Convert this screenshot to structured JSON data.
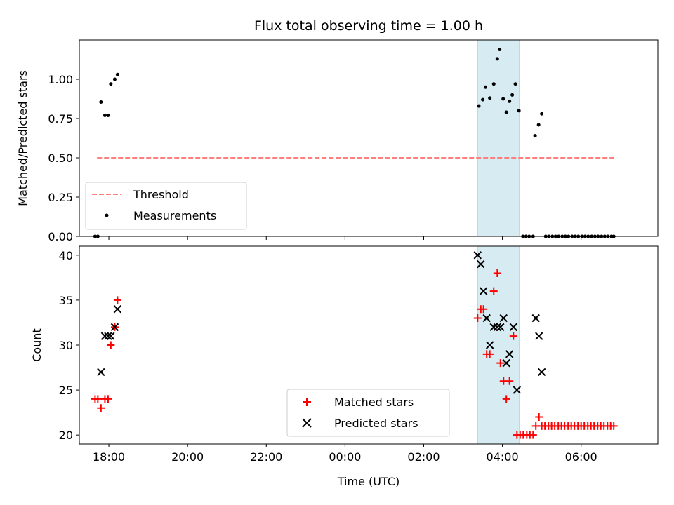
{
  "title": "Flux total observing time = 1.00 h",
  "colors": {
    "threshold": "#ff7f7f",
    "measurements": "#000000",
    "matched": "#ff0000",
    "predicted": "#000000",
    "highlight": "#add8e6"
  },
  "chart_data": [
    {
      "type": "scatter",
      "panel": "top",
      "ylabel": "Matched/Predicted stars",
      "xlabel": "",
      "xlim": [
        -6.75,
        7.95
      ],
      "ylim": [
        0,
        1.25
      ],
      "yticks": [
        0.0,
        0.25,
        0.5,
        0.75,
        1.0
      ],
      "ytick_labels": [
        "0.00",
        "0.25",
        "0.50",
        "0.75",
        "1.00"
      ],
      "highlight_span": [
        3.37,
        4.43
      ],
      "threshold": {
        "name": "Threshold",
        "value": 0.5,
        "x": [
          -6.3,
          6.83
        ]
      },
      "legend": {
        "placement": "lower-left",
        "entries": [
          "Threshold",
          "Measurements"
        ]
      },
      "series": [
        {
          "name": "Measurements",
          "points": [
            [
              -6.35,
              0.0
            ],
            [
              -6.28,
              0.0
            ],
            [
              -6.2,
              0.855
            ],
            [
              -6.1,
              0.77
            ],
            [
              -6.02,
              0.77
            ],
            [
              -5.95,
              0.97
            ],
            [
              -5.85,
              1.0
            ],
            [
              -5.78,
              1.03
            ],
            [
              3.4,
              0.83
            ],
            [
              3.5,
              0.87
            ],
            [
              3.57,
              0.95
            ],
            [
              3.68,
              0.88
            ],
            [
              3.78,
              0.97
            ],
            [
              3.87,
              1.13
            ],
            [
              3.93,
              1.19
            ],
            [
              4.02,
              0.875
            ],
            [
              4.1,
              0.79
            ],
            [
              4.18,
              0.86
            ],
            [
              4.25,
              0.9
            ],
            [
              4.33,
              0.97
            ],
            [
              4.42,
              0.8
            ],
            [
              4.52,
              0.0
            ],
            [
              4.6,
              0.0
            ],
            [
              4.68,
              0.0
            ],
            [
              4.78,
              0.0
            ],
            [
              4.83,
              0.64
            ],
            [
              4.92,
              0.71
            ],
            [
              5.0,
              0.78
            ],
            [
              5.1,
              0.0
            ],
            [
              5.18,
              0.0
            ],
            [
              5.27,
              0.0
            ],
            [
              5.35,
              0.0
            ],
            [
              5.43,
              0.0
            ],
            [
              5.52,
              0.0
            ],
            [
              5.6,
              0.0
            ],
            [
              5.68,
              0.0
            ],
            [
              5.77,
              0.0
            ],
            [
              5.85,
              0.0
            ],
            [
              5.93,
              0.0
            ],
            [
              6.02,
              0.0
            ],
            [
              6.1,
              0.0
            ],
            [
              6.18,
              0.0
            ],
            [
              6.27,
              0.0
            ],
            [
              6.35,
              0.0
            ],
            [
              6.43,
              0.0
            ],
            [
              6.52,
              0.0
            ],
            [
              6.6,
              0.0
            ],
            [
              6.68,
              0.0
            ],
            [
              6.77,
              0.0
            ],
            [
              6.83,
              0.0
            ]
          ]
        }
      ]
    },
    {
      "type": "scatter",
      "panel": "bottom",
      "ylabel": "Count",
      "xlabel": "Time (UTC)",
      "xlim": [
        -6.75,
        7.95
      ],
      "ylim": [
        19,
        41
      ],
      "yticks": [
        20,
        25,
        30,
        35,
        40
      ],
      "ytick_labels": [
        "20",
        "25",
        "30",
        "35",
        "40"
      ],
      "xticks": [
        -6,
        -4,
        -2,
        0,
        2,
        4,
        6
      ],
      "xtick_labels": [
        "18:00",
        "20:00",
        "22:00",
        "00:00",
        "02:00",
        "04:00",
        "06:00"
      ],
      "highlight_span": [
        3.37,
        4.43
      ],
      "legend": {
        "placement": "lower-center",
        "entries": [
          "Matched stars",
          "Predicted stars"
        ]
      },
      "series": [
        {
          "name": "Matched stars",
          "marker": "plus",
          "points": [
            [
              -6.35,
              24
            ],
            [
              -6.28,
              24
            ],
            [
              -6.2,
              23
            ],
            [
              -6.1,
              24
            ],
            [
              -6.02,
              24
            ],
            [
              -5.95,
              30
            ],
            [
              -5.85,
              32
            ],
            [
              -5.78,
              35
            ],
            [
              3.37,
              33
            ],
            [
              3.45,
              34
            ],
            [
              3.52,
              34
            ],
            [
              3.6,
              29
            ],
            [
              3.68,
              29
            ],
            [
              3.78,
              36
            ],
            [
              3.87,
              38
            ],
            [
              3.95,
              28
            ],
            [
              4.03,
              26
            ],
            [
              4.1,
              24
            ],
            [
              4.18,
              26
            ],
            [
              4.28,
              31
            ],
            [
              4.37,
              20
            ],
            [
              4.45,
              20
            ],
            [
              4.53,
              20
            ],
            [
              4.62,
              20
            ],
            [
              4.7,
              20
            ],
            [
              4.78,
              20
            ],
            [
              4.85,
              21
            ],
            [
              4.93,
              22
            ],
            [
              5.0,
              21
            ],
            [
              5.08,
              21
            ],
            [
              5.17,
              21
            ],
            [
              5.25,
              21
            ],
            [
              5.33,
              21
            ],
            [
              5.42,
              21
            ],
            [
              5.5,
              21
            ],
            [
              5.58,
              21
            ],
            [
              5.67,
              21
            ],
            [
              5.75,
              21
            ],
            [
              5.83,
              21
            ],
            [
              5.92,
              21
            ],
            [
              6.0,
              21
            ],
            [
              6.08,
              21
            ],
            [
              6.17,
              21
            ],
            [
              6.25,
              21
            ],
            [
              6.33,
              21
            ],
            [
              6.42,
              21
            ],
            [
              6.5,
              21
            ],
            [
              6.58,
              21
            ],
            [
              6.67,
              21
            ],
            [
              6.75,
              21
            ],
            [
              6.83,
              21
            ]
          ]
        },
        {
          "name": "Predicted stars",
          "marker": "x",
          "points": [
            [
              -6.2,
              27
            ],
            [
              -6.1,
              31
            ],
            [
              -6.02,
              31
            ],
            [
              -5.95,
              31
            ],
            [
              -5.85,
              32
            ],
            [
              -5.78,
              34
            ],
            [
              3.37,
              40
            ],
            [
              3.45,
              39
            ],
            [
              3.52,
              36
            ],
            [
              3.6,
              33
            ],
            [
              3.68,
              30
            ],
            [
              3.78,
              32
            ],
            [
              3.87,
              32
            ],
            [
              3.95,
              32
            ],
            [
              4.03,
              33
            ],
            [
              4.1,
              28
            ],
            [
              4.18,
              29
            ],
            [
              4.28,
              32
            ],
            [
              4.37,
              25
            ],
            [
              4.85,
              33
            ],
            [
              4.93,
              31
            ],
            [
              5.0,
              27
            ]
          ]
        }
      ]
    }
  ]
}
